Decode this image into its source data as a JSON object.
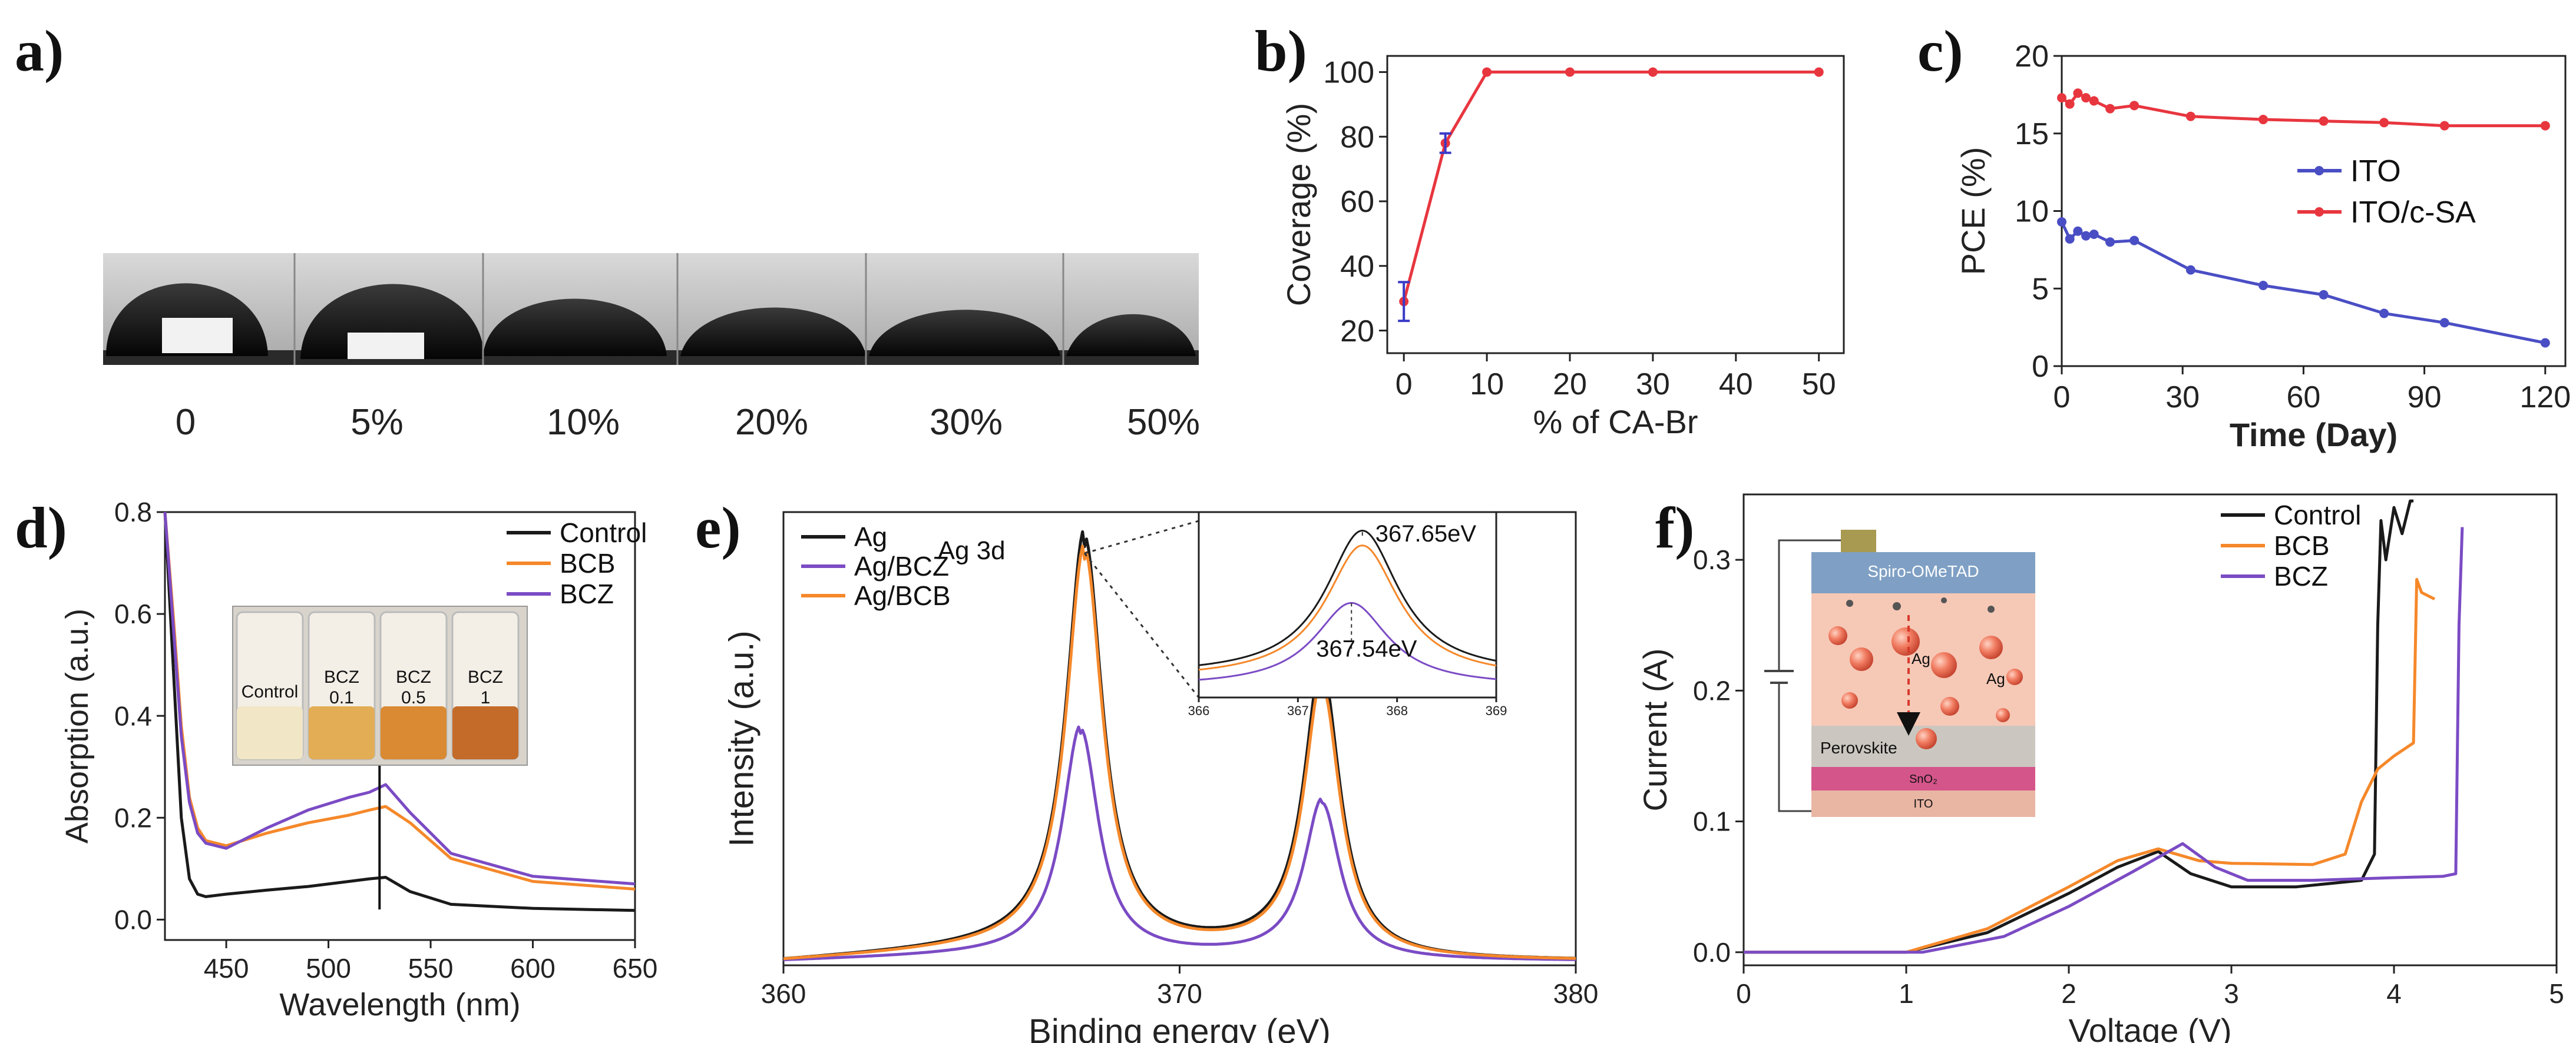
{
  "figure": {
    "panel_labels": [
      "a)",
      "b)",
      "c)",
      "d)",
      "e)",
      "f)"
    ]
  },
  "photo_a": {
    "labels": [
      "0",
      "5%",
      "10%",
      "20%",
      "30%",
      "50%"
    ]
  },
  "vial_photo_d": {
    "labels": [
      {
        "line1": "Control",
        "line2": ""
      },
      {
        "line1": "BCZ",
        "line2": "0.1"
      },
      {
        "line1": "BCZ",
        "line2": "0.5"
      },
      {
        "line1": "BCZ",
        "line2": "1"
      }
    ]
  },
  "device_schematic_f": {
    "labels": [
      "Spiro-OMeTAD",
      "Ag",
      "Ag",
      "Perovskite",
      "SnO₂",
      "ITO"
    ]
  },
  "chart_data": [
    {
      "panel": "b",
      "type": "line",
      "title": "",
      "xlabel": "% of CA-Br",
      "ylabel": "Coverage (%)",
      "xlim": [
        -2,
        53
      ],
      "ylim": [
        13,
        105
      ],
      "xticks": [
        0,
        10,
        20,
        30,
        40,
        50
      ],
      "yticks": [
        20,
        40,
        60,
        80,
        100
      ],
      "series": [
        {
          "name": "Coverage",
          "color": "#e8363f",
          "x": [
            0,
            5,
            10,
            20,
            30,
            50
          ],
          "y": [
            29,
            78,
            100,
            100,
            100,
            100
          ],
          "err": [
            6,
            3,
            0,
            0,
            0,
            0
          ]
        }
      ]
    },
    {
      "panel": "c",
      "type": "line",
      "title": "",
      "xlabel": "Time (Day)",
      "ylabel": "PCE (%)",
      "xlim": [
        0,
        125
      ],
      "ylim": [
        0,
        20
      ],
      "xticks": [
        0,
        30,
        60,
        90,
        120
      ],
      "yticks": [
        0,
        5,
        10,
        15,
        20
      ],
      "legend_position": "center-right",
      "series": [
        {
          "name": "ITO",
          "color": "#4a4ec4",
          "x": [
            0,
            2,
            4,
            6,
            8,
            12,
            18,
            32,
            50,
            65,
            80,
            95,
            120
          ],
          "y": [
            9.3,
            8.2,
            8.7,
            8.4,
            8.5,
            8.0,
            8.1,
            6.2,
            5.2,
            4.6,
            3.4,
            2.8,
            1.5
          ]
        },
        {
          "name": "ITO/c-SA",
          "color": "#e8363f",
          "x": [
            0,
            2,
            4,
            6,
            8,
            12,
            18,
            32,
            50,
            65,
            80,
            95,
            120
          ],
          "y": [
            17.3,
            16.9,
            17.6,
            17.3,
            17.1,
            16.6,
            16.8,
            16.1,
            15.9,
            15.8,
            15.7,
            15.5,
            15.5
          ]
        }
      ]
    },
    {
      "panel": "d",
      "type": "line",
      "title": "",
      "xlabel": "Wavelength (nm)",
      "ylabel": "Absorption (a.u.)",
      "xlim": [
        420,
        650
      ],
      "ylim": [
        -0.04,
        0.8
      ],
      "xticks": [
        450,
        500,
        550,
        600,
        650
      ],
      "yticks": [
        0.0,
        0.2,
        0.4,
        0.6,
        0.8
      ],
      "legend_position": "top-right",
      "annotation": "upward arrow at 525 nm",
      "series": [
        {
          "name": "Control",
          "color": "#1a1a1a",
          "x": [
            420,
            424,
            428,
            432,
            436,
            440,
            450,
            470,
            490,
            510,
            520,
            528,
            540,
            560,
            600,
            650
          ],
          "y": [
            0.8,
            0.5,
            0.2,
            0.08,
            0.05,
            0.045,
            0.05,
            0.058,
            0.065,
            0.075,
            0.08,
            0.083,
            0.055,
            0.03,
            0.022,
            0.018
          ]
        },
        {
          "name": "BCB",
          "color": "#f5882a",
          "x": [
            420,
            424,
            428,
            432,
            436,
            440,
            450,
            470,
            490,
            510,
            520,
            528,
            540,
            560,
            600,
            650
          ],
          "y": [
            0.8,
            0.6,
            0.38,
            0.24,
            0.18,
            0.155,
            0.145,
            0.17,
            0.19,
            0.205,
            0.215,
            0.222,
            0.19,
            0.12,
            0.075,
            0.06
          ]
        },
        {
          "name": "BCZ",
          "color": "#7b4bc4",
          "x": [
            420,
            424,
            428,
            432,
            436,
            440,
            450,
            470,
            490,
            510,
            520,
            528,
            540,
            560,
            600,
            650
          ],
          "y": [
            0.8,
            0.58,
            0.36,
            0.23,
            0.17,
            0.15,
            0.14,
            0.18,
            0.215,
            0.24,
            0.25,
            0.265,
            0.21,
            0.13,
            0.085,
            0.07
          ]
        }
      ]
    },
    {
      "panel": "e",
      "type": "line",
      "title": "",
      "xlabel": "Binding energy (eV)",
      "ylabel": "Intensity (a.u.)",
      "xlim": [
        360,
        380
      ],
      "ylim": [
        0,
        1.1
      ],
      "xticks": [
        360,
        370,
        380
      ],
      "yticks": [],
      "legend_position": "top-left",
      "annotation": "Ag 3d",
      "series": [
        {
          "name": "Ag",
          "color": "#1a1a1a",
          "peaks": [
            [
              367.6,
              1.0
            ],
            [
              373.6,
              0.7
            ]
          ],
          "base": 0.01,
          "tail": 0.045
        },
        {
          "name": "Ag/BCZ",
          "color": "#7b4bc4",
          "peaks": [
            [
              367.5,
              0.55
            ],
            [
              373.6,
              0.38
            ]
          ],
          "base": 0.01,
          "tail": 0.02
        },
        {
          "name": "Ag/BCB",
          "color": "#f5882a",
          "peaks": [
            [
              367.6,
              0.97
            ],
            [
              373.6,
              0.66
            ]
          ],
          "base": 0.01,
          "tail": 0.04
        }
      ]
    },
    {
      "panel": "e-inset",
      "type": "line",
      "title": "",
      "xlabel": "",
      "ylabel": "",
      "xlim": [
        366,
        369
      ],
      "ylim": [
        0,
        1.0
      ],
      "xticks": [
        366,
        367,
        368,
        369
      ],
      "yticks": [],
      "annotations": [
        "367.65eV",
        "367.54eV"
      ],
      "series": [
        {
          "name": "Ag",
          "color": "#1a1a1a",
          "peaks": [
            [
              367.65,
              0.78
            ]
          ],
          "base": 0.12
        },
        {
          "name": "Ag/BCB",
          "color": "#f5882a",
          "peaks": [
            [
              367.65,
              0.72
            ]
          ],
          "base": 0.1
        },
        {
          "name": "Ag/BCZ",
          "color": "#7b4bc4",
          "peaks": [
            [
              367.54,
              0.45
            ]
          ],
          "base": 0.06
        }
      ]
    },
    {
      "panel": "f",
      "type": "line",
      "title": "",
      "xlabel": "Voltage (V)",
      "ylabel": "Current (A)",
      "xlim": [
        0,
        5
      ],
      "ylim": [
        -0.01,
        0.35
      ],
      "xticks": [
        0,
        1,
        2,
        3,
        4,
        5
      ],
      "yticks": [
        0.0,
        0.1,
        0.2,
        0.3
      ],
      "legend_position": "top-right",
      "series": [
        {
          "name": "Control",
          "color": "#1a1a1a",
          "x": [
            0,
            1.0,
            1.5,
            2.0,
            2.3,
            2.55,
            2.75,
            3.0,
            3.4,
            3.8,
            3.88,
            3.9,
            3.92,
            3.95,
            4.0,
            4.05,
            4.1,
            4.12
          ],
          "y": [
            0,
            0,
            0.015,
            0.045,
            0.065,
            0.077,
            0.06,
            0.05,
            0.05,
            0.055,
            0.075,
            0.25,
            0.33,
            0.3,
            0.34,
            0.32,
            0.345,
            0.345
          ]
        },
        {
          "name": "BCB",
          "color": "#f5882a",
          "x": [
            0,
            1.0,
            1.5,
            2.0,
            2.3,
            2.55,
            2.8,
            3.0,
            3.5,
            3.7,
            3.8,
            3.9,
            4.0,
            4.12,
            4.14,
            4.17,
            4.25
          ],
          "y": [
            0,
            0,
            0.018,
            0.05,
            0.07,
            0.079,
            0.07,
            0.068,
            0.067,
            0.075,
            0.115,
            0.14,
            0.15,
            0.16,
            0.285,
            0.275,
            0.27
          ]
        },
        {
          "name": "BCZ",
          "color": "#7b4bc4",
          "x": [
            0,
            1.1,
            1.6,
            2.0,
            2.4,
            2.7,
            2.9,
            3.1,
            3.5,
            4.0,
            4.3,
            4.38,
            4.4,
            4.42
          ],
          "y": [
            0,
            0,
            0.012,
            0.035,
            0.062,
            0.083,
            0.065,
            0.055,
            0.055,
            0.057,
            0.058,
            0.06,
            0.25,
            0.325
          ]
        }
      ]
    }
  ]
}
